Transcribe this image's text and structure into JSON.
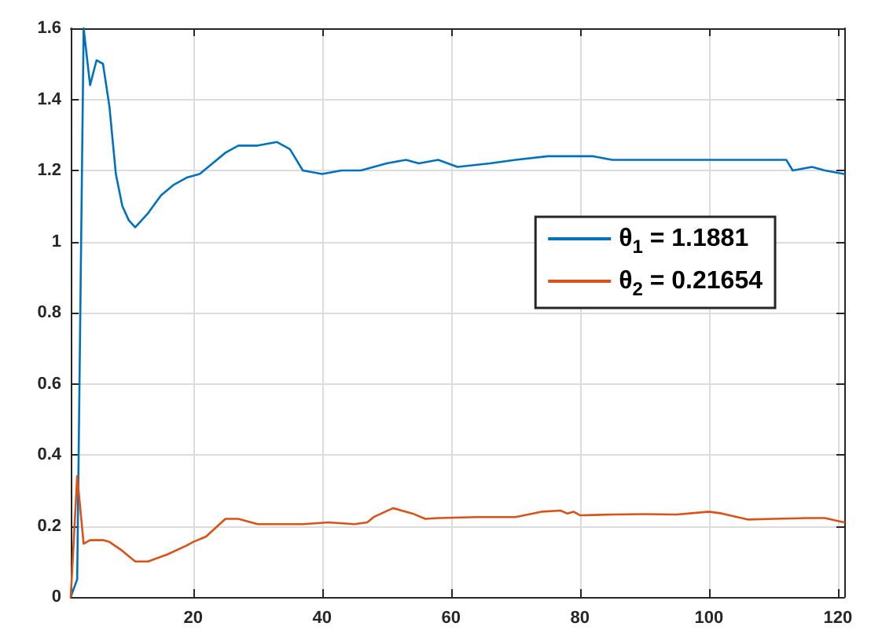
{
  "chart_data": {
    "type": "line",
    "xlim": [
      1,
      121
    ],
    "xticks": [
      20,
      40,
      60,
      80,
      100,
      120
    ],
    "ylim": [
      0,
      1.6
    ],
    "yticks": [
      0,
      0.2,
      0.4,
      0.6,
      0.8,
      1,
      1.2,
      1.4,
      1.6
    ],
    "grid": true,
    "legend": "right",
    "marker": "none",
    "line_style": "solid",
    "series": [
      {
        "name": "θ$_{1}$ = 1.1881",
        "color": "#0072bd",
        "x": [
          1,
          2,
          3,
          4,
          5,
          6,
          7,
          8,
          9,
          10,
          11,
          13,
          15,
          17,
          19,
          21,
          23,
          25,
          27,
          30,
          33,
          35,
          37,
          40,
          43,
          46,
          50,
          53,
          55,
          58,
          61,
          66,
          70,
          75,
          79,
          82,
          85,
          90,
          95,
          100,
          105,
          110,
          112,
          113,
          116,
          118,
          121
        ],
        "values": [
          0,
          0.05,
          1.6,
          1.44,
          1.51,
          1.5,
          1.38,
          1.19,
          1.1,
          1.06,
          1.04,
          1.08,
          1.13,
          1.16,
          1.18,
          1.19,
          1.22,
          1.25,
          1.27,
          1.27,
          1.28,
          1.26,
          1.2,
          1.19,
          1.2,
          1.2,
          1.22,
          1.23,
          1.22,
          1.23,
          1.21,
          1.22,
          1.23,
          1.24,
          1.24,
          1.24,
          1.23,
          1.23,
          1.23,
          1.23,
          1.23,
          1.23,
          1.23,
          1.2,
          1.21,
          1.2,
          1.19
        ]
      },
      {
        "name": "θ$_{2}$ = 0.21654",
        "color": "#d95319",
        "x": [
          1,
          2,
          3,
          4,
          6,
          7,
          9,
          11,
          13,
          16,
          19,
          20,
          22,
          25,
          27,
          30,
          34,
          37,
          41,
          45,
          47,
          48,
          51,
          54,
          56,
          58,
          64,
          70,
          74,
          77,
          78,
          79,
          80,
          85,
          90,
          95,
          100,
          102,
          106,
          110,
          115,
          118,
          121
        ],
        "values": [
          0,
          0.34,
          0.15,
          0.16,
          0.16,
          0.155,
          0.13,
          0.1,
          0.1,
          0.12,
          0.145,
          0.155,
          0.17,
          0.22,
          0.22,
          0.205,
          0.205,
          0.205,
          0.21,
          0.205,
          0.21,
          0.225,
          0.25,
          0.235,
          0.22,
          0.222,
          0.225,
          0.225,
          0.24,
          0.243,
          0.235,
          0.24,
          0.23,
          0.232,
          0.233,
          0.232,
          0.24,
          0.235,
          0.218,
          0.22,
          0.222,
          0.222,
          0.21
        ]
      }
    ]
  }
}
